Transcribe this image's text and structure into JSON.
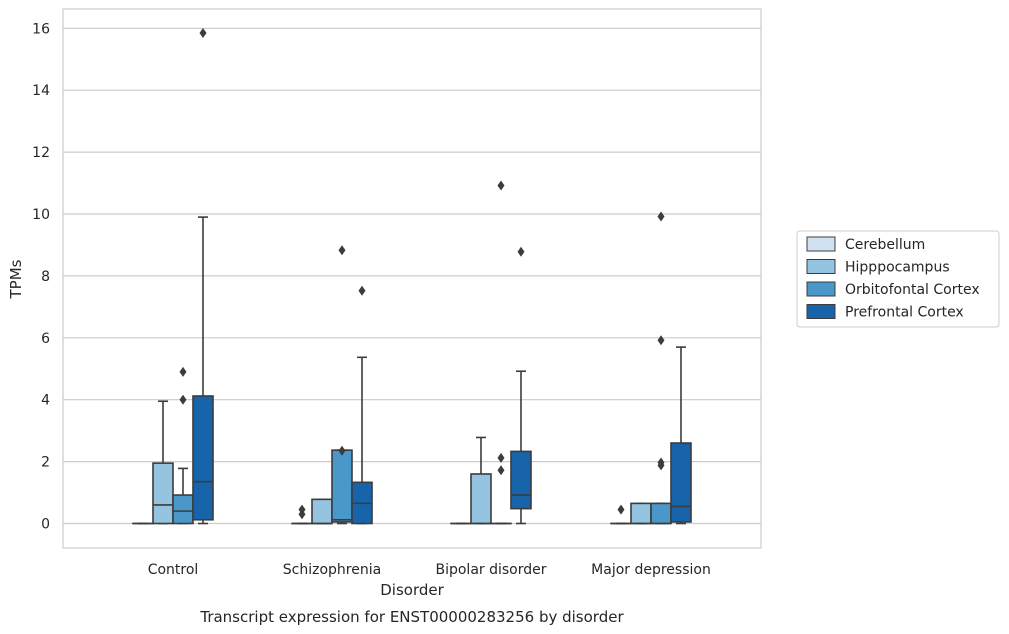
{
  "chart_data": {
    "type": "box",
    "title": "",
    "caption": "Transcript expression for ENST00000283256 by disorder",
    "xlabel": "Disorder",
    "ylabel": "TPMs",
    "ylim": [
      -0.8,
      16.6
    ],
    "yticks": [
      0,
      2,
      4,
      6,
      8,
      10,
      12,
      14,
      16
    ],
    "grid": true,
    "legend_position": "right",
    "categories": [
      "Control",
      "Schizophrenia",
      "Bipolar disorder",
      "Major depression"
    ],
    "series": [
      {
        "name": "Cerebellum",
        "color": "#d0e1f2",
        "boxes": [
          {
            "q1": 0,
            "median": 0,
            "q3": 0,
            "whislo": 0,
            "whishi": 0,
            "fliers": []
          },
          {
            "q1": 0,
            "median": 0,
            "q3": 0,
            "whislo": 0,
            "whishi": 0,
            "fliers": [
              0.3,
              0.45
            ]
          },
          {
            "q1": 0,
            "median": 0,
            "q3": 0,
            "whislo": 0,
            "whishi": 0,
            "fliers": []
          },
          {
            "q1": 0,
            "median": 0,
            "q3": 0,
            "whislo": 0,
            "whishi": 0,
            "fliers": [
              0.45
            ]
          }
        ]
      },
      {
        "name": "Hipppocampus",
        "color": "#94c4df",
        "boxes": [
          {
            "q1": 0,
            "median": 0.6,
            "q3": 1.95,
            "whislo": 0,
            "whishi": 3.95,
            "fliers": []
          },
          {
            "q1": 0,
            "median": 0,
            "q3": 0.78,
            "whislo": 0,
            "whishi": 0.78,
            "fliers": []
          },
          {
            "q1": 0,
            "median": 0,
            "q3": 1.6,
            "whislo": 0,
            "whishi": 2.78,
            "fliers": []
          },
          {
            "q1": 0,
            "median": 0,
            "q3": 0.65,
            "whislo": 0,
            "whishi": 0.65,
            "fliers": []
          }
        ]
      },
      {
        "name": "Orbitofontal Cortex",
        "color": "#4a98c9",
        "boxes": [
          {
            "q1": 0,
            "median": 0.4,
            "q3": 0.92,
            "whislo": 0,
            "whishi": 1.78,
            "fliers": [
              4.0,
              4.9
            ]
          },
          {
            "q1": 0.05,
            "median": 0.12,
            "q3": 2.37,
            "whislo": 0,
            "whishi": 2.37,
            "fliers": [
              2.35,
              8.83
            ]
          },
          {
            "q1": 0,
            "median": 0,
            "q3": 0,
            "whislo": 0,
            "whishi": 0,
            "fliers": [
              1.72,
              2.12,
              10.92
            ]
          },
          {
            "q1": 0,
            "median": 0,
            "q3": 0.65,
            "whislo": 0,
            "whishi": 0.65,
            "fliers": [
              1.88,
              1.97,
              5.92,
              9.92
            ]
          }
        ]
      },
      {
        "name": "Prefrontal Cortex",
        "color": "#1764ab",
        "boxes": [
          {
            "q1": 0.12,
            "median": 1.35,
            "q3": 4.12,
            "whislo": 0,
            "whishi": 9.9,
            "fliers": [
              15.85
            ]
          },
          {
            "q1": 0,
            "median": 0.65,
            "q3": 1.33,
            "whislo": 0,
            "whishi": 5.37,
            "fliers": [
              7.52
            ]
          },
          {
            "q1": 0.48,
            "median": 0.92,
            "q3": 2.33,
            "whislo": 0,
            "whishi": 4.92,
            "fliers": [
              8.78
            ]
          },
          {
            "q1": 0.05,
            "median": 0.55,
            "q3": 2.6,
            "whislo": 0,
            "whishi": 5.7,
            "fliers": []
          }
        ]
      }
    ]
  }
}
